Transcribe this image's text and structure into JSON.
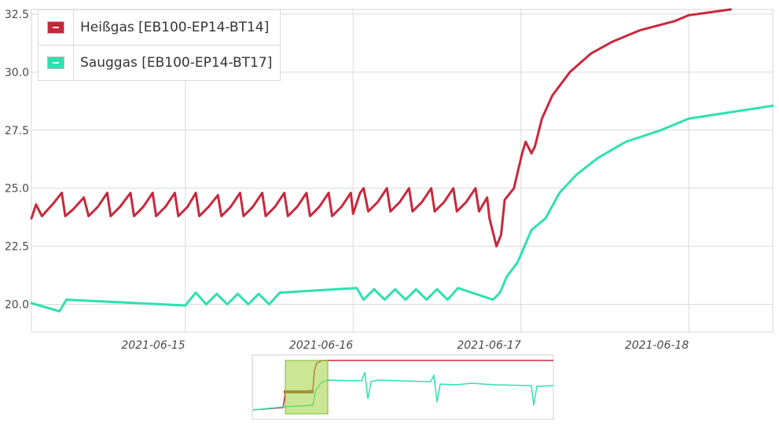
{
  "chart_data": {
    "type": "line",
    "title": "",
    "xlabel": "",
    "ylabel": "",
    "ylim": [
      18.8,
      32.7
    ],
    "xlim": [
      "2021-06-14 02:00",
      "2021-06-18 12:00"
    ],
    "yticks": [
      "20.0",
      "22.5",
      "25.0",
      "27.5",
      "30.0",
      "32.5"
    ],
    "xticks": [
      "2021-06-15",
      "2021-06-16",
      "2021-06-17",
      "2021-06-18"
    ],
    "grid": true,
    "legend_position": "top-left",
    "series": [
      {
        "name": "Heißgas [EB100-EP14-BT14]",
        "color": "#c8283c",
        "points": [
          [
            "2021-06-14 02:00",
            23.7
          ],
          [
            "2021-06-14 02:40",
            24.3
          ],
          [
            "2021-06-14 03:30",
            23.8
          ],
          [
            "2021-06-14 05:00",
            24.3
          ],
          [
            "2021-06-14 06:20",
            24.8
          ],
          [
            "2021-06-14 06:50",
            23.8
          ],
          [
            "2021-06-14 08:00",
            24.1
          ],
          [
            "2021-06-14 09:30",
            24.6
          ],
          [
            "2021-06-14 10:10",
            23.8
          ],
          [
            "2021-06-14 11:30",
            24.2
          ],
          [
            "2021-06-14 12:50",
            24.8
          ],
          [
            "2021-06-14 13:20",
            23.8
          ],
          [
            "2021-06-14 14:40",
            24.2
          ],
          [
            "2021-06-14 16:10",
            24.8
          ],
          [
            "2021-06-14 16:40",
            23.8
          ],
          [
            "2021-06-14 18:00",
            24.2
          ],
          [
            "2021-06-14 19:20",
            24.8
          ],
          [
            "2021-06-14 19:50",
            23.8
          ],
          [
            "2021-06-14 21:10",
            24.2
          ],
          [
            "2021-06-14 22:30",
            24.8
          ],
          [
            "2021-06-14 23:00",
            23.8
          ],
          [
            "2021-06-15 00:20",
            24.2
          ],
          [
            "2021-06-15 01:30",
            24.8
          ],
          [
            "2021-06-15 02:00",
            23.8
          ],
          [
            "2021-06-15 03:20",
            24.2
          ],
          [
            "2021-06-15 04:40",
            24.7
          ],
          [
            "2021-06-15 05:10",
            23.8
          ],
          [
            "2021-06-15 06:30",
            24.2
          ],
          [
            "2021-06-15 07:50",
            24.8
          ],
          [
            "2021-06-15 08:20",
            23.8
          ],
          [
            "2021-06-15 09:40",
            24.2
          ],
          [
            "2021-06-15 11:00",
            24.8
          ],
          [
            "2021-06-15 11:30",
            23.8
          ],
          [
            "2021-06-15 12:50",
            24.2
          ],
          [
            "2021-06-15 14:10",
            24.8
          ],
          [
            "2021-06-15 14:40",
            23.8
          ],
          [
            "2021-06-15 16:00",
            24.2
          ],
          [
            "2021-06-15 17:20",
            24.8
          ],
          [
            "2021-06-15 17:50",
            23.8
          ],
          [
            "2021-06-15 19:10",
            24.2
          ],
          [
            "2021-06-15 20:30",
            24.8
          ],
          [
            "2021-06-15 21:00",
            23.8
          ],
          [
            "2021-06-15 22:20",
            24.2
          ],
          [
            "2021-06-15 23:40",
            24.8
          ],
          [
            "2021-06-16 00:00",
            23.9
          ],
          [
            "2021-06-16 01:00",
            24.8
          ],
          [
            "2021-06-16 01:30",
            25.0
          ],
          [
            "2021-06-16 02:10",
            24.0
          ],
          [
            "2021-06-16 03:30",
            24.4
          ],
          [
            "2021-06-16 04:50",
            25.0
          ],
          [
            "2021-06-16 05:20",
            24.0
          ],
          [
            "2021-06-16 06:40",
            24.4
          ],
          [
            "2021-06-16 08:00",
            25.0
          ],
          [
            "2021-06-16 08:30",
            24.0
          ],
          [
            "2021-06-16 09:50",
            24.4
          ],
          [
            "2021-06-16 11:10",
            25.0
          ],
          [
            "2021-06-16 11:40",
            24.0
          ],
          [
            "2021-06-16 13:00",
            24.4
          ],
          [
            "2021-06-16 14:20",
            25.0
          ],
          [
            "2021-06-16 14:50",
            24.0
          ],
          [
            "2021-06-16 16:10",
            24.4
          ],
          [
            "2021-06-16 17:30",
            25.0
          ],
          [
            "2021-06-16 18:00",
            24.0
          ],
          [
            "2021-06-16 19:10",
            24.6
          ],
          [
            "2021-06-16 19:30",
            23.7
          ],
          [
            "2021-06-16 20:30",
            22.5
          ],
          [
            "2021-06-16 21:10",
            23.0
          ],
          [
            "2021-06-16 21:40",
            24.5
          ],
          [
            "2021-06-16 23:00",
            25.0
          ],
          [
            "2021-06-17 00:10",
            26.5
          ],
          [
            "2021-06-17 00:40",
            27.0
          ],
          [
            "2021-06-17 01:30",
            26.5
          ],
          [
            "2021-06-17 02:00",
            26.8
          ],
          [
            "2021-06-17 03:00",
            28.0
          ],
          [
            "2021-06-17 04:30",
            29.0
          ],
          [
            "2021-06-17 07:00",
            30.0
          ],
          [
            "2021-06-17 10:00",
            30.8
          ],
          [
            "2021-06-17 13:00",
            31.3
          ],
          [
            "2021-06-17 17:00",
            31.8
          ],
          [
            "2021-06-17 22:00",
            32.2
          ],
          [
            "2021-06-18 00:00",
            32.45
          ],
          [
            "2021-06-18 06:00",
            32.7
          ]
        ]
      },
      {
        "name": "Sauggas [EB100-EP14-BT17]",
        "color": "#2ee0b0",
        "points": [
          [
            "2021-06-14 02:00",
            20.05
          ],
          [
            "2021-06-14 06:00",
            19.7
          ],
          [
            "2021-06-14 07:00",
            20.2
          ],
          [
            "2021-06-15 00:00",
            19.95
          ],
          [
            "2021-06-15 01:30",
            20.5
          ],
          [
            "2021-06-15 03:00",
            20.0
          ],
          [
            "2021-06-15 04:30",
            20.45
          ],
          [
            "2021-06-15 06:00",
            20.0
          ],
          [
            "2021-06-15 07:30",
            20.45
          ],
          [
            "2021-06-15 09:00",
            20.0
          ],
          [
            "2021-06-15 10:30",
            20.45
          ],
          [
            "2021-06-15 12:00",
            20.0
          ],
          [
            "2021-06-15 13:30",
            20.5
          ],
          [
            "2021-06-16 00:30",
            20.7
          ],
          [
            "2021-06-16 01:30",
            20.2
          ],
          [
            "2021-06-16 03:00",
            20.65
          ],
          [
            "2021-06-16 04:30",
            20.2
          ],
          [
            "2021-06-16 06:00",
            20.65
          ],
          [
            "2021-06-16 07:30",
            20.2
          ],
          [
            "2021-06-16 09:00",
            20.65
          ],
          [
            "2021-06-16 10:30",
            20.2
          ],
          [
            "2021-06-16 12:00",
            20.65
          ],
          [
            "2021-06-16 13:30",
            20.2
          ],
          [
            "2021-06-16 15:00",
            20.7
          ],
          [
            "2021-06-16 20:00",
            20.2
          ],
          [
            "2021-06-16 21:00",
            20.5
          ],
          [
            "2021-06-16 22:00",
            21.2
          ],
          [
            "2021-06-16 23:30",
            21.8
          ],
          [
            "2021-06-17 00:30",
            22.5
          ],
          [
            "2021-06-17 01:30",
            23.2
          ],
          [
            "2021-06-17 03:30",
            23.7
          ],
          [
            "2021-06-17 05:30",
            24.8
          ],
          [
            "2021-06-17 08:00",
            25.6
          ],
          [
            "2021-06-17 11:00",
            26.3
          ],
          [
            "2021-06-17 15:00",
            27.0
          ],
          [
            "2021-06-17 20:00",
            27.5
          ],
          [
            "2021-06-18 00:00",
            28.0
          ],
          [
            "2021-06-18 12:00",
            28.55
          ]
        ]
      }
    ]
  },
  "navigator": {
    "window_start": "2021-06-14 02:00",
    "window_end": "2021-06-18 12:00"
  }
}
